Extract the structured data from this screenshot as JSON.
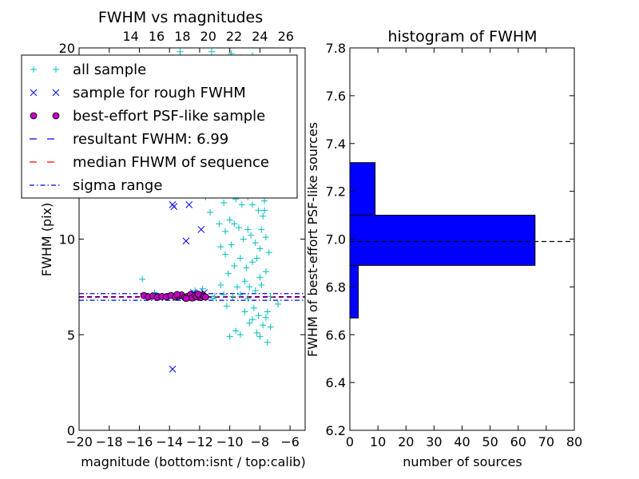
{
  "chart_data": [
    {
      "type": "scatter",
      "title": "FWHM vs magnitudes",
      "xlabel": "magnitude (bottom:isnt / top:calib)",
      "ylabel": "FWHM (pix)",
      "xlim": [
        -20,
        -5
      ],
      "ylim": [
        0,
        20
      ],
      "xticks": [
        -20,
        -18,
        -16,
        -14,
        -12,
        -10,
        -8,
        -6
      ],
      "xtick_labels": [
        "−20",
        "−18",
        "−16",
        "−14",
        "−12",
        "−10",
        "−8",
        "−6"
      ],
      "yticks": [
        0,
        5,
        10,
        20
      ],
      "ytick_labels": [
        "0",
        "5",
        "10",
        "20"
      ],
      "top_xlim": [
        10,
        27.5
      ],
      "top_xticks": [
        14,
        16,
        18,
        20,
        22,
        24,
        26
      ],
      "top_xtick_labels": [
        "14",
        "16",
        "18",
        "20",
        "22",
        "24",
        "26"
      ],
      "legend": {
        "position": "upper-left",
        "entries": [
          {
            "label": "all sample",
            "color": "#00bfbf",
            "marker": "plus"
          },
          {
            "label": "sample for rough FWHM",
            "color": "#0000ff",
            "marker": "x"
          },
          {
            "label": "best-effort PSF-like sample",
            "color": "#bf00bf",
            "marker": "circle"
          },
          {
            "label": "resultant FWHM: 6.99",
            "color": "#0000ff",
            "marker": "dashed"
          },
          {
            "label": "median FHWM of sequence",
            "color": "#ff0000",
            "marker": "dashed"
          },
          {
            "label": "sigma range",
            "color": "#0000ff",
            "marker": "dashdot"
          }
        ]
      },
      "hlines": [
        {
          "name": "resultant FWHM",
          "y": 6.99,
          "color": "#0000ff",
          "style": "dashed"
        },
        {
          "name": "median FHWM of sequence",
          "y": 6.95,
          "color": "#ff0000",
          "style": "dashed"
        },
        {
          "name": "sigma range upper",
          "y": 7.15,
          "color": "#0000ff",
          "style": "dashdot"
        },
        {
          "name": "sigma range lower",
          "y": 6.8,
          "color": "#0000ff",
          "style": "dashdot"
        }
      ],
      "series": [
        {
          "name": "all sample",
          "marker": "plus",
          "color": "#00bfbf",
          "points": [
            [
              -15.8,
              7.9
            ],
            [
              -15.0,
              7.2
            ],
            [
              -12.3,
              7.3
            ],
            [
              -11.8,
              7.4
            ],
            [
              -11.1,
              6.9
            ],
            [
              -10.6,
              7.6
            ],
            [
              -10.2,
              6.5
            ],
            [
              -10.0,
              4.9
            ],
            [
              -9.6,
              5.2
            ],
            [
              -9.3,
              5.0
            ],
            [
              -9.0,
              6.2
            ],
            [
              -8.7,
              5.6
            ],
            [
              -8.5,
              5.8
            ],
            [
              -8.2,
              5.1
            ],
            [
              -8.0,
              4.9
            ],
            [
              -7.6,
              5.9
            ],
            [
              -7.5,
              4.6
            ],
            [
              -7.3,
              5.4
            ],
            [
              -6.8,
              6.6
            ],
            [
              -8.0,
              8.0
            ],
            [
              -8.9,
              8.5
            ],
            [
              -9.3,
              9.0
            ],
            [
              -9.7,
              8.6
            ],
            [
              -10.3,
              9.2
            ],
            [
              -8.0,
              9.5
            ],
            [
              -8.3,
              9.8
            ],
            [
              -8.6,
              10.2
            ],
            [
              -8.8,
              10.5
            ],
            [
              -9.1,
              10.0
            ],
            [
              -9.4,
              10.6
            ],
            [
              -9.7,
              10.8
            ],
            [
              -10.0,
              11.0
            ],
            [
              -10.3,
              10.4
            ],
            [
              -10.7,
              10.8
            ],
            [
              -7.6,
              10.1
            ],
            [
              -7.4,
              9.3
            ],
            [
              -7.8,
              11.2
            ],
            [
              -8.1,
              11.5
            ],
            [
              -8.5,
              11.8
            ],
            [
              -8.8,
              12.2
            ],
            [
              -9.2,
              11.8
            ],
            [
              -9.6,
              12.1
            ],
            [
              -10.0,
              12.3
            ],
            [
              -10.4,
              11.9
            ],
            [
              -10.9,
              12.4
            ],
            [
              -8.0,
              12.5
            ],
            [
              -7.8,
              13.0
            ],
            [
              -8.2,
              13.5
            ],
            [
              -8.4,
              14.0
            ],
            [
              -8.6,
              13.2
            ],
            [
              -9.0,
              13.0
            ],
            [
              -9.4,
              13.3
            ],
            [
              -7.9,
              14.3
            ],
            [
              -8.1,
              14.6
            ],
            [
              -8.0,
              15.5
            ],
            [
              -8.2,
              16.2
            ],
            [
              -7.9,
              17.5
            ],
            [
              -8.3,
              18.3
            ],
            [
              -8.1,
              19.0
            ],
            [
              -8.5,
              19.6
            ],
            [
              -9.3,
              19.5
            ],
            [
              -9.9,
              19.7
            ],
            [
              -11.2,
              19.8
            ],
            [
              -13.3,
              19.8
            ],
            [
              -10.7,
              12.9
            ],
            [
              -11.6,
              12.2
            ],
            [
              -11.3,
              11.4
            ],
            [
              -10.9,
              13.3
            ],
            [
              -10.5,
              13.8
            ],
            [
              -9.8,
              14.2
            ],
            [
              -9.5,
              15.0
            ],
            [
              -9.1,
              16.0
            ],
            [
              -8.9,
              17.0
            ],
            [
              -8.7,
              18.0
            ],
            [
              -8.4,
              17.2
            ],
            [
              -7.7,
              16.8
            ],
            [
              -7.7,
              12.0
            ],
            [
              -7.6,
              8.3
            ],
            [
              -7.9,
              7.6
            ],
            [
              -8.3,
              7.3
            ],
            [
              -8.8,
              6.9
            ],
            [
              -9.3,
              7.1
            ],
            [
              -9.8,
              7.0
            ],
            [
              -10.4,
              7.1
            ],
            [
              -11.0,
              7.0
            ],
            [
              -7.3,
              7.0
            ],
            [
              -7.5,
              6.2
            ],
            [
              -7.8,
              5.5
            ],
            [
              -8.1,
              6.0
            ],
            [
              -8.4,
              6.4
            ],
            [
              -8.7,
              7.5
            ],
            [
              -9.0,
              7.8
            ],
            [
              -9.5,
              7.5
            ],
            [
              -10.1,
              8.2
            ],
            [
              -10.6,
              9.6
            ],
            [
              -9.9,
              9.7
            ],
            [
              -8.5,
              8.8
            ],
            [
              -8.2,
              9.0
            ],
            [
              -7.9,
              10.5
            ],
            [
              -7.7,
              11.5
            ],
            [
              -8.3,
              12.8
            ],
            [
              -8.6,
              15.0
            ],
            [
              -8.2,
              17.8
            ],
            [
              -9.2,
              14.5
            ],
            [
              -9.6,
              13.6
            ]
          ]
        },
        {
          "name": "sample for rough FWHM",
          "marker": "x",
          "color": "#0000ff",
          "points": [
            [
              -13.8,
              11.8
            ],
            [
              -13.7,
              11.7
            ],
            [
              -12.7,
              11.8
            ],
            [
              -11.9,
              10.5
            ],
            [
              -12.9,
              9.9
            ],
            [
              -13.8,
              3.2
            ],
            [
              -12.4,
              7.2
            ],
            [
              -11.7,
              7.2
            ]
          ]
        },
        {
          "name": "best-effort PSF-like sample",
          "marker": "circle",
          "color": "#bf00bf",
          "points": [
            [
              -15.7,
              7.05
            ],
            [
              -15.4,
              6.98
            ],
            [
              -15.1,
              7.02
            ],
            [
              -14.8,
              6.96
            ],
            [
              -14.5,
              7.0
            ],
            [
              -14.2,
              6.98
            ],
            [
              -13.9,
              7.05
            ],
            [
              -13.6,
              6.97
            ],
            [
              -13.4,
              7.02
            ],
            [
              -13.2,
              7.08
            ],
            [
              -13.0,
              6.95
            ],
            [
              -12.8,
              7.01
            ],
            [
              -12.6,
              7.1
            ],
            [
              -12.5,
              6.92
            ],
            [
              -12.3,
              7.05
            ],
            [
              -12.2,
              6.98
            ],
            [
              -12.0,
              7.03
            ],
            [
              -11.9,
              6.95
            ],
            [
              -11.8,
              7.08
            ],
            [
              -11.7,
              7.0
            ],
            [
              -11.6,
              6.97
            ],
            [
              -13.5,
              7.1
            ],
            [
              -12.9,
              6.9
            ],
            [
              -12.1,
              7.12
            ]
          ]
        }
      ]
    },
    {
      "type": "histogram",
      "orientation": "horizontal",
      "title": "histogram of FWHM",
      "xlabel": "number of sources",
      "ylabel": "FWHM of best-effort PSF-like sources",
      "xlim": [
        0,
        80
      ],
      "ylim": [
        6.2,
        7.8
      ],
      "xticks": [
        0,
        10,
        20,
        30,
        40,
        50,
        60,
        70,
        80
      ],
      "xtick_labels": [
        "0",
        "10",
        "20",
        "30",
        "40",
        "50",
        "60",
        "70",
        "80"
      ],
      "yticks": [
        6.2,
        6.4,
        6.6,
        6.8,
        7.0,
        7.2,
        7.4,
        7.6,
        7.8
      ],
      "ytick_labels": [
        "6.2",
        "6.4",
        "6.6",
        "6.8",
        "7.0",
        "7.2",
        "7.4",
        "7.6",
        "7.8"
      ],
      "bar_color": "#0000ff",
      "bins": [
        {
          "low": 6.67,
          "high": 6.89,
          "count": 3
        },
        {
          "low": 6.89,
          "high": 7.1,
          "count": 66
        },
        {
          "low": 7.1,
          "high": 7.32,
          "count": 9
        }
      ],
      "hlines": [
        {
          "name": "resultant FWHM",
          "y": 6.99,
          "color": "#000000",
          "style": "dashed"
        }
      ]
    }
  ]
}
